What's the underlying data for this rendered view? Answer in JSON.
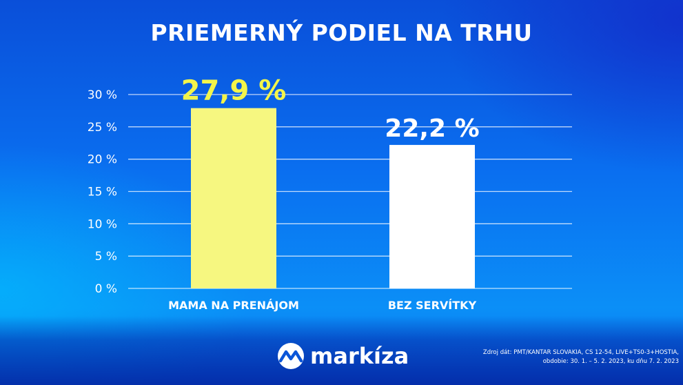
{
  "title": "PRIEMERNÝ PODIEL NA TRHU",
  "chart_data": {
    "type": "bar",
    "title": "PRIEMERNÝ PODIEL NA TRHU",
    "categories": [
      "MAMA NA PRENÁJOM",
      "BEZ SERVÍTKY"
    ],
    "values": [
      27.9,
      22.2
    ],
    "value_labels": [
      "27,9 %",
      "22,2 %"
    ],
    "bar_colors": [
      "#f6f780",
      "#ffffff"
    ],
    "value_label_colors": [
      "#f3f54a",
      "#ffffff"
    ],
    "ylim": [
      0,
      30
    ],
    "yticks": [
      0,
      5,
      10,
      15,
      20,
      25,
      30
    ],
    "ytick_labels": [
      "0 %",
      "5 %",
      "10 %",
      "15 %",
      "20 %",
      "25 %",
      "30 %"
    ],
    "grid": true,
    "xlabel": "",
    "ylabel": ""
  },
  "logo": {
    "text": "markíza",
    "icon": "markiza-logo-icon"
  },
  "source": {
    "line1": "Zdroj dát: PMT/KANTAR SLOVAKIA, CS 12-54, LIVE+TS0-3+HOSTIA,",
    "line2": "obdobie: 30. 1. – 5. 2. 2023, ku dňu 7. 2. 2023"
  }
}
